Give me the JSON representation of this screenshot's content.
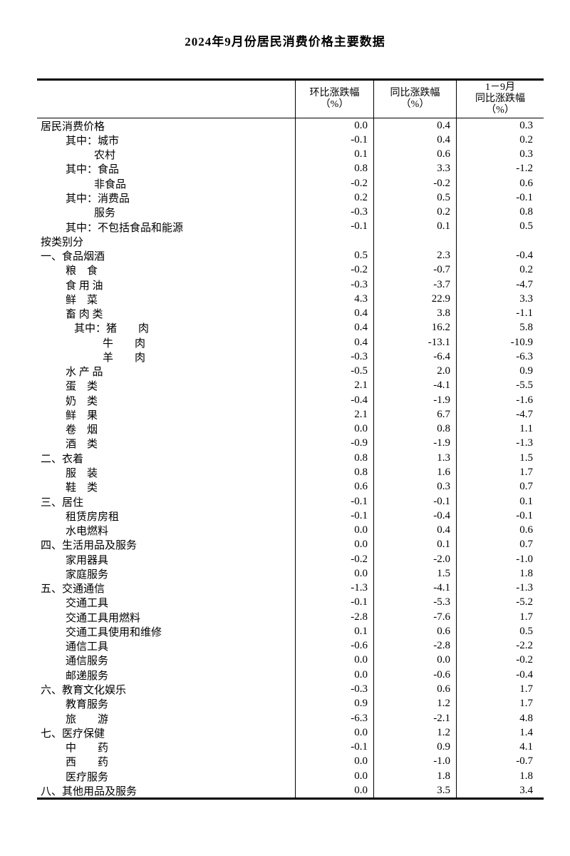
{
  "title": "2024年9月份居民消费价格主要数据",
  "table": {
    "header": {
      "columns": [
        {
          "lines": [
            "环比涨跌幅",
            "（%）"
          ]
        },
        {
          "lines": [
            "同比涨跌幅",
            "（%）"
          ]
        },
        {
          "lines": [
            "1－9月",
            "同比涨跌幅",
            "（%）"
          ]
        }
      ]
    },
    "rows": [
      {
        "label": "居民消费价格",
        "indent": 0,
        "values": [
          "0.0",
          "0.4",
          "0.3"
        ]
      },
      {
        "label": "其中：城市",
        "indent": 1,
        "values": [
          "-0.1",
          "0.4",
          "0.2"
        ]
      },
      {
        "label": "农村",
        "indent": 2,
        "values": [
          "0.1",
          "0.6",
          "0.3"
        ]
      },
      {
        "label": "其中：食品",
        "indent": 1,
        "values": [
          "0.8",
          "3.3",
          "-1.2"
        ]
      },
      {
        "label": "非食品",
        "indent": 2,
        "values": [
          "-0.2",
          "-0.2",
          "0.6"
        ]
      },
      {
        "label": "其中：消费品",
        "indent": 1,
        "values": [
          "0.2",
          "0.5",
          "-0.1"
        ]
      },
      {
        "label": "服务",
        "indent": 2,
        "values": [
          "-0.3",
          "0.2",
          "0.8"
        ]
      },
      {
        "label": "其中：不包括食品和能源",
        "indent": 1,
        "values": [
          "-0.1",
          "0.1",
          "0.5"
        ]
      },
      {
        "label": "按类别分",
        "indent": 0,
        "values": [
          "",
          "",
          ""
        ]
      },
      {
        "label": "一、食品烟酒",
        "indent": 0,
        "values": [
          "0.5",
          "2.3",
          "-0.4"
        ]
      },
      {
        "label": "粮　食",
        "indent": 1,
        "values": [
          "-0.2",
          "-0.7",
          "0.2"
        ]
      },
      {
        "label": "食 用 油",
        "indent": 1,
        "values": [
          "-0.3",
          "-3.7",
          "-4.7"
        ]
      },
      {
        "label": "鲜　菜",
        "indent": 1,
        "values": [
          "4.3",
          "22.9",
          "3.3"
        ]
      },
      {
        "label": "畜 肉 类",
        "indent": 1,
        "values": [
          "0.4",
          "3.8",
          "-1.1"
        ]
      },
      {
        "label": "其中：猪　　肉",
        "indent": 3,
        "values": [
          "0.4",
          "16.2",
          "5.8"
        ]
      },
      {
        "label": "牛　　肉",
        "indent": 4,
        "values": [
          "0.4",
          "-13.1",
          "-10.9"
        ]
      },
      {
        "label": "羊　　肉",
        "indent": 4,
        "values": [
          "-0.3",
          "-6.4",
          "-6.3"
        ]
      },
      {
        "label": "水 产 品",
        "indent": 1,
        "values": [
          "-0.5",
          "2.0",
          "0.9"
        ]
      },
      {
        "label": "蛋　类",
        "indent": 1,
        "values": [
          "2.1",
          "-4.1",
          "-5.5"
        ]
      },
      {
        "label": "奶　类",
        "indent": 1,
        "values": [
          "-0.4",
          "-1.9",
          "-1.6"
        ]
      },
      {
        "label": "鲜　果",
        "indent": 1,
        "values": [
          "2.1",
          "6.7",
          "-4.7"
        ]
      },
      {
        "label": "卷　烟",
        "indent": 1,
        "values": [
          "0.0",
          "0.8",
          "1.1"
        ]
      },
      {
        "label": "酒　类",
        "indent": 1,
        "values": [
          "-0.9",
          "-1.9",
          "-1.3"
        ]
      },
      {
        "label": "二、衣着",
        "indent": 0,
        "values": [
          "0.8",
          "1.3",
          "1.5"
        ]
      },
      {
        "label": "服　装",
        "indent": 1,
        "values": [
          "0.8",
          "1.6",
          "1.7"
        ]
      },
      {
        "label": "鞋　类",
        "indent": 1,
        "values": [
          "0.6",
          "0.3",
          "0.7"
        ]
      },
      {
        "label": "三、居住",
        "indent": 0,
        "values": [
          "-0.1",
          "-0.1",
          "0.1"
        ]
      },
      {
        "label": "租赁房房租",
        "indent": 1,
        "values": [
          "-0.1",
          "-0.4",
          "-0.1"
        ]
      },
      {
        "label": "水电燃料",
        "indent": 1,
        "values": [
          "0.0",
          "0.4",
          "0.6"
        ]
      },
      {
        "label": "四、生活用品及服务",
        "indent": 0,
        "values": [
          "0.0",
          "0.1",
          "0.7"
        ]
      },
      {
        "label": "家用器具",
        "indent": 1,
        "values": [
          "-0.2",
          "-2.0",
          "-1.0"
        ]
      },
      {
        "label": "家庭服务",
        "indent": 1,
        "values": [
          "0.0",
          "1.5",
          "1.8"
        ]
      },
      {
        "label": "五、交通通信",
        "indent": 0,
        "values": [
          "-1.3",
          "-4.1",
          "-1.3"
        ]
      },
      {
        "label": "交通工具",
        "indent": 1,
        "values": [
          "-0.1",
          "-5.3",
          "-5.2"
        ]
      },
      {
        "label": "交通工具用燃料",
        "indent": 1,
        "values": [
          "-2.8",
          "-7.6",
          "1.7"
        ]
      },
      {
        "label": "交通工具使用和维修",
        "indent": 1,
        "values": [
          "0.1",
          "0.6",
          "0.5"
        ]
      },
      {
        "label": "通信工具",
        "indent": 1,
        "values": [
          "-0.6",
          "-2.8",
          "-2.2"
        ]
      },
      {
        "label": "通信服务",
        "indent": 1,
        "values": [
          "0.0",
          "0.0",
          "-0.2"
        ]
      },
      {
        "label": "邮递服务",
        "indent": 1,
        "values": [
          "0.0",
          "-0.6",
          "-0.4"
        ]
      },
      {
        "label": "六、教育文化娱乐",
        "indent": 0,
        "values": [
          "-0.3",
          "0.6",
          "1.7"
        ]
      },
      {
        "label": "教育服务",
        "indent": 1,
        "values": [
          "0.9",
          "1.2",
          "1.7"
        ]
      },
      {
        "label": "旅　　游",
        "indent": 1,
        "values": [
          "-6.3",
          "-2.1",
          "4.8"
        ]
      },
      {
        "label": "七、医疗保健",
        "indent": 0,
        "values": [
          "0.0",
          "1.2",
          "1.4"
        ]
      },
      {
        "label": "中　　药",
        "indent": 1,
        "values": [
          "-0.1",
          "0.9",
          "4.1"
        ]
      },
      {
        "label": "西　　药",
        "indent": 1,
        "values": [
          "0.0",
          "-1.0",
          "-0.7"
        ]
      },
      {
        "label": "医疗服务",
        "indent": 1,
        "values": [
          "0.0",
          "1.8",
          "1.8"
        ]
      },
      {
        "label": "八、其他用品及服务",
        "indent": 0,
        "values": [
          "0.0",
          "3.5",
          "3.4"
        ]
      }
    ]
  }
}
